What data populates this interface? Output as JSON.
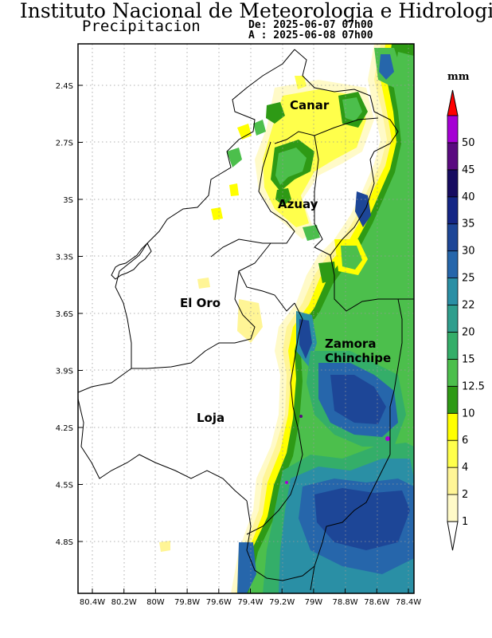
{
  "header": {
    "title": "Instituto Nacional de Meteorologia e Hidrologia",
    "subtitle": "Precipitacion",
    "from_label": "De: 2025-06-07 07h00",
    "to_label": "A : 2025-06-08 07h00"
  },
  "map": {
    "lat_ticks": [
      "2.4S",
      "2.7S",
      "3S",
      "3.3S",
      "3.6S",
      "3.9S",
      "4.2S",
      "4.5S",
      "4.8S"
    ],
    "lon_ticks": [
      "80.4W",
      "80.2W",
      "80W",
      "79.8W",
      "79.6W",
      "79.4W",
      "79.2W",
      "79W",
      "78.8W",
      "78.6W",
      "78.4W"
    ],
    "provinces": [
      "Canar",
      "Azuay",
      "El Oro",
      "Zamora",
      "Chinchipe",
      "Loja"
    ],
    "grid": true
  },
  "legend": {
    "unit": "mm",
    "levels": [
      "1",
      "2",
      "4",
      "6",
      "10",
      "12.5",
      "15",
      "20",
      "22",
      "25",
      "30",
      "35",
      "40",
      "45",
      "50"
    ],
    "colors": [
      "#fffac8",
      "#fff596",
      "#ffff4b",
      "#ffff00",
      "#2e9a15",
      "#4cbf4c",
      "#34ae69",
      "#2f9e8d",
      "#2a8fa5",
      "#2666ab",
      "#1d4697",
      "#142685",
      "#160b60",
      "#5a0a80",
      "#a500d4"
    ],
    "overflow_color": "#ff0000",
    "underflow_color": "#ffffff"
  }
}
